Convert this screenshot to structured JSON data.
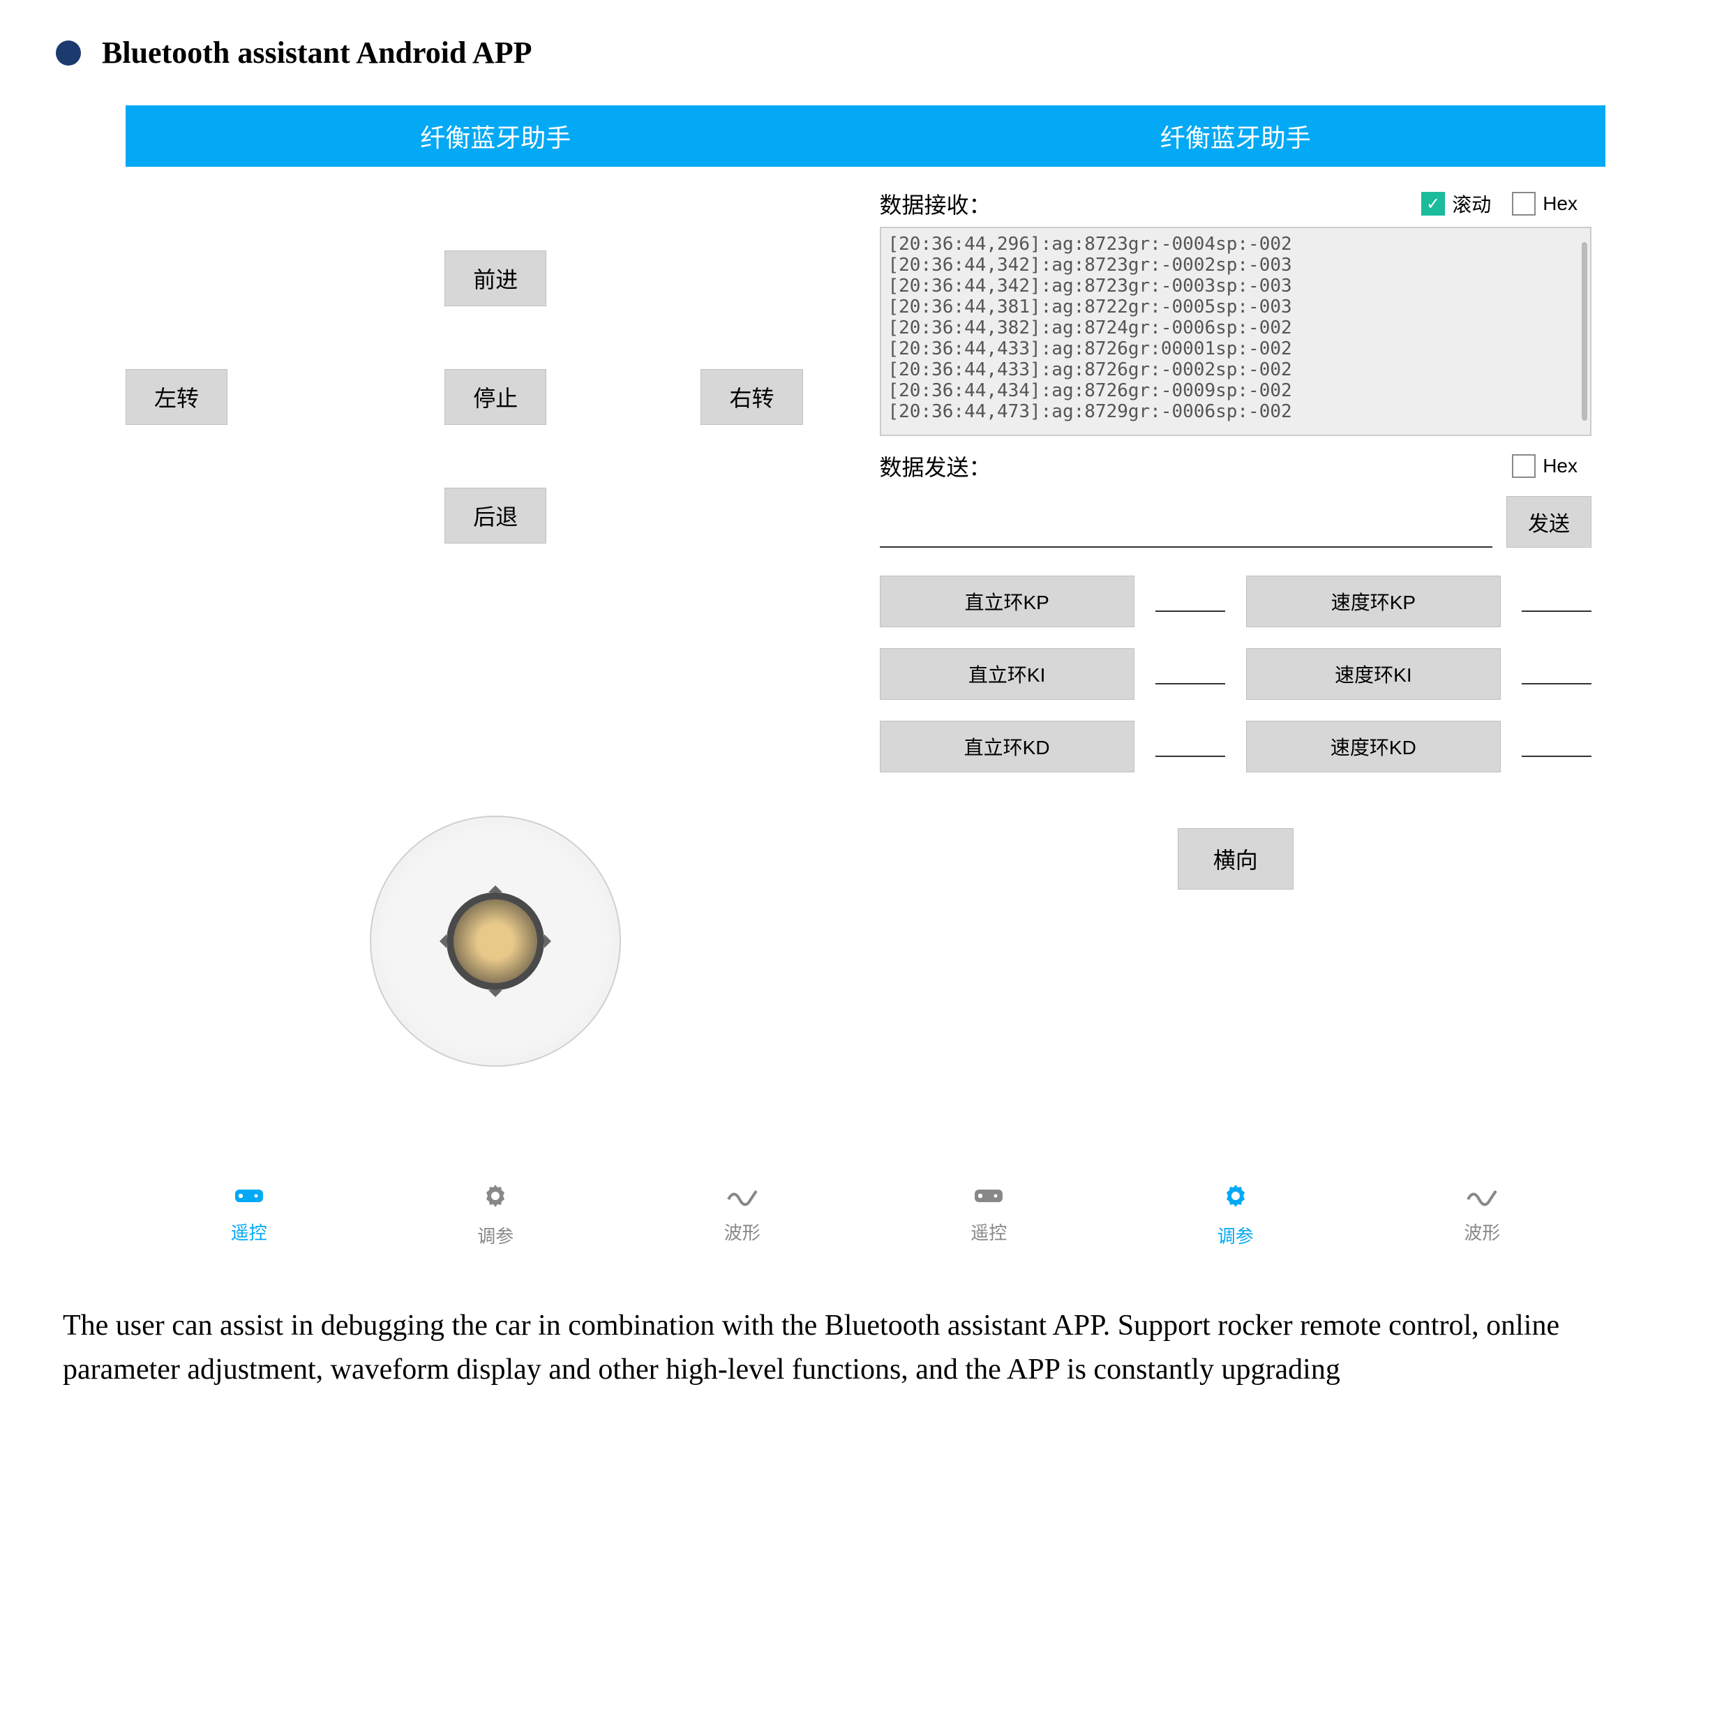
{
  "doc": {
    "title": "Bluetooth assistant Android APP",
    "description": "The user can assist in debugging the car in combination with the Bluetooth assistant APP. Support rocker remote control, online parameter adjustment, waveform display and other high-level functions, and the APP is constantly upgrading"
  },
  "left_panel": {
    "header": "纤衡蓝牙助手",
    "dpad": {
      "forward": "前进",
      "stop": "停止",
      "left": "左转",
      "right": "右转",
      "back": "后退"
    },
    "nav": {
      "remote": "遥控",
      "params": "调参",
      "wave": "波形",
      "active": "remote"
    }
  },
  "right_panel": {
    "header": "纤衡蓝牙助手",
    "receive": {
      "label": "数据接收：",
      "scroll_label": "滚动",
      "scroll_checked": true,
      "hex_label": "Hex",
      "hex_checked": false,
      "log_lines": [
        "[20:36:44,296]:ag:8723gr:-0004sp:-002",
        "[20:36:44,342]:ag:8723gr:-0002sp:-003",
        "[20:36:44,342]:ag:8723gr:-0003sp:-003",
        "[20:36:44,381]:ag:8722gr:-0005sp:-003",
        "[20:36:44,382]:ag:8724gr:-0006sp:-002",
        "[20:36:44,433]:ag:8726gr:00001sp:-002",
        "[20:36:44,433]:ag:8726gr:-0002sp:-002",
        "[20:36:44,434]:ag:8726gr:-0009sp:-002",
        "[20:36:44,473]:ag:8729gr:-0006sp:-002"
      ]
    },
    "send": {
      "label": "数据发送：",
      "hex_label": "Hex",
      "hex_checked": false,
      "button": "发送"
    },
    "params": {
      "upright_kp": "直立环KP",
      "upright_ki": "直立环KI",
      "upright_kd": "直立环KD",
      "speed_kp": "速度环KP",
      "speed_ki": "速度环KI",
      "speed_kd": "速度环KD"
    },
    "landscape": "横向",
    "nav": {
      "remote": "遥控",
      "params": "调参",
      "wave": "波形",
      "active": "params"
    }
  },
  "colors": {
    "header_bg": "#03a9f4",
    "button_bg": "#d7d7d7",
    "accent": "#1abc9c",
    "bullet": "#1c3a6e"
  }
}
